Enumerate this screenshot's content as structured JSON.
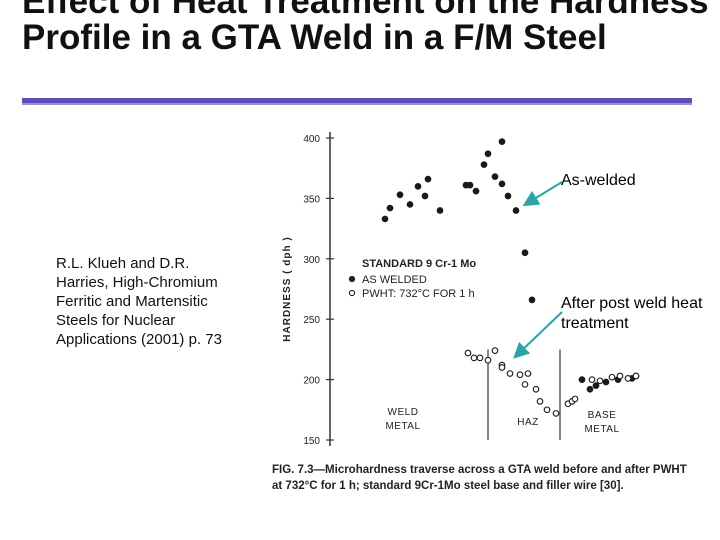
{
  "slide": {
    "title": "Effect of Heat Treatment on the Hardness Profile in a GTA Weld in a F/M Steel",
    "citation": "R.L. Klueh and D.R. Harries, High-Chromium Ferritic and Martensitic Steels for Nuclear Applications (2001) p. 73",
    "callouts": {
      "as_welded": "As-welded",
      "post_weld": "After post weld heat treatment"
    },
    "colors": {
      "accent_rule": "#5b4fb8",
      "callout_arrow": "#2aa5a5"
    }
  },
  "chart_data": {
    "type": "scatter",
    "ylabel": "HARDNESS ( dph )",
    "yticks": [
      "400",
      "350",
      "300",
      "250",
      "200",
      "150"
    ],
    "ylim": [
      150,
      400
    ],
    "x": null,
    "legend": {
      "title": "STANDARD 9 Cr-1 Mo",
      "entries": [
        "AS WELDED",
        "PWHT: 732°C FOR 1 h"
      ]
    },
    "region_labels": [
      "WELD METAL",
      "HAZ",
      "BASE METAL"
    ],
    "caption": "FIG. 7.3—Microhardness traverse across a GTA weld before and after PWHT at 732°C for 1 h; standard 9Cr-1Mo steel base and filler wire [30].",
    "series": [
      {
        "name": "AS WELDED",
        "marker": "filled",
        "points": [
          {
            "x": 1,
            "y": 333
          },
          {
            "x": 2,
            "y": 342
          },
          {
            "x": 3,
            "y": 353
          },
          {
            "x": 4,
            "y": 345
          },
          {
            "x": 5,
            "y": 360
          },
          {
            "x": 6,
            "y": 352
          },
          {
            "x": 7,
            "y": 340
          },
          {
            "x": 8,
            "y": 366
          },
          {
            "x": 9,
            "y": 361
          },
          {
            "x": 10,
            "y": 361
          },
          {
            "x": 11,
            "y": 356
          },
          {
            "x": 12,
            "y": 387
          },
          {
            "x": 13,
            "y": 378
          },
          {
            "x": 14,
            "y": 397
          },
          {
            "x": 15,
            "y": 368
          },
          {
            "x": 16,
            "y": 362
          },
          {
            "x": 17,
            "y": 352
          },
          {
            "x": 18,
            "y": 340
          },
          {
            "x": 19,
            "y": 305
          },
          {
            "x": 20,
            "y": 266
          },
          {
            "x": 21,
            "y": 200
          },
          {
            "x": 22,
            "y": 192
          },
          {
            "x": 23,
            "y": 195
          },
          {
            "x": 24,
            "y": 198
          },
          {
            "x": 25,
            "y": 200
          },
          {
            "x": 26,
            "y": 201
          },
          {
            "x": 27,
            "y": 203
          }
        ]
      },
      {
        "name": "PWHT: 732°C FOR 1 h",
        "marker": "open",
        "points": [
          {
            "x": 1,
            "y": 222
          },
          {
            "x": 2,
            "y": 218
          },
          {
            "x": 3,
            "y": 218
          },
          {
            "x": 4,
            "y": 216
          },
          {
            "x": 5,
            "y": 224
          },
          {
            "x": 6,
            "y": 212
          },
          {
            "x": 7,
            "y": 205
          },
          {
            "x": 8,
            "y": 210
          },
          {
            "x": 9,
            "y": 204
          },
          {
            "x": 10,
            "y": 205
          },
          {
            "x": 11,
            "y": 196
          },
          {
            "x": 12,
            "y": 192
          },
          {
            "x": 13,
            "y": 182
          },
          {
            "x": 14,
            "y": 175
          },
          {
            "x": 15,
            "y": 172
          },
          {
            "x": 16,
            "y": 180
          },
          {
            "x": 17,
            "y": 182
          },
          {
            "x": 18,
            "y": 184
          },
          {
            "x": 19,
            "y": 200
          },
          {
            "x": 20,
            "y": 199
          },
          {
            "x": 21,
            "y": 202
          },
          {
            "x": 22,
            "y": 203
          },
          {
            "x": 23,
            "y": 201
          },
          {
            "x": 24,
            "y": 203
          }
        ]
      }
    ]
  }
}
